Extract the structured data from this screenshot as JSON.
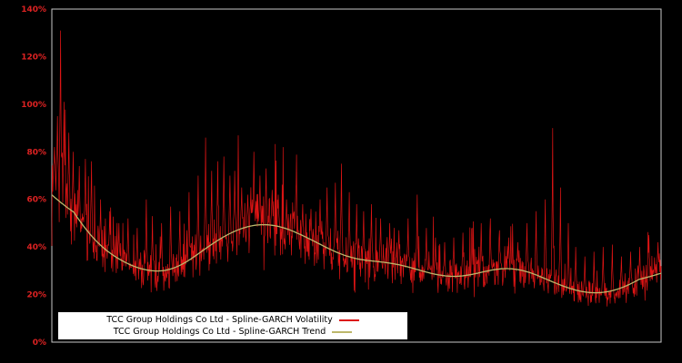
{
  "window": {
    "background": "#000000"
  },
  "chart_data": {
    "type": "line",
    "title": "",
    "xlabel": "",
    "ylabel": "",
    "ylim": [
      0,
      140
    ],
    "grid": false,
    "legend_position": "bottom-left",
    "axis_color": "#c8c8c8",
    "tick_color": "#dd2222",
    "y_ticks": [
      "0%",
      "20%",
      "40%",
      "60%",
      "80%",
      "100%",
      "120%",
      "140%"
    ],
    "series": [
      {
        "name": "TCC Group Holdings Co Ltd - Spline-GARCH Volatility",
        "color": "#dd1414",
        "style": "noisy"
      },
      {
        "name": "TCC Group Holdings Co Ltd - Spline-GARCH Trend",
        "color": "#bdb76b",
        "style": "smooth"
      }
    ],
    "trend_points": [
      [
        0,
        70
      ],
      [
        0.02,
        61
      ],
      [
        0.04,
        52
      ],
      [
        0.06,
        45
      ],
      [
        0.08,
        40
      ],
      [
        0.1,
        36
      ],
      [
        0.12,
        33
      ],
      [
        0.14,
        31
      ],
      [
        0.16,
        29.5
      ],
      [
        0.18,
        29
      ],
      [
        0.2,
        30
      ],
      [
        0.22,
        33
      ],
      [
        0.24,
        37
      ],
      [
        0.26,
        41
      ],
      [
        0.28,
        44.5
      ],
      [
        0.3,
        47
      ],
      [
        0.32,
        49
      ],
      [
        0.34,
        50
      ],
      [
        0.36,
        50
      ],
      [
        0.38,
        48.5
      ],
      [
        0.4,
        46.5
      ],
      [
        0.42,
        44
      ],
      [
        0.44,
        41
      ],
      [
        0.46,
        38.5
      ],
      [
        0.48,
        36
      ],
      [
        0.5,
        34.5
      ],
      [
        0.52,
        34
      ],
      [
        0.54,
        34
      ],
      [
        0.56,
        33.5
      ],
      [
        0.58,
        32
      ],
      [
        0.6,
        30.5
      ],
      [
        0.62,
        29
      ],
      [
        0.64,
        27.5
      ],
      [
        0.66,
        27
      ],
      [
        0.68,
        27.5
      ],
      [
        0.7,
        29
      ],
      [
        0.72,
        30.5
      ],
      [
        0.74,
        31.5
      ],
      [
        0.76,
        31.5
      ],
      [
        0.78,
        30
      ],
      [
        0.8,
        28
      ],
      [
        0.82,
        25.5
      ],
      [
        0.84,
        23
      ],
      [
        0.86,
        21.5
      ],
      [
        0.88,
        20.5
      ],
      [
        0.9,
        20
      ],
      [
        0.92,
        21
      ],
      [
        0.94,
        23
      ],
      [
        0.96,
        25.5
      ],
      [
        0.98,
        28.5
      ],
      [
        1,
        32
      ]
    ],
    "spikes": [
      [
        0.004,
        82
      ],
      [
        0.009,
        95
      ],
      [
        0.014,
        131
      ],
      [
        0.02,
        101
      ],
      [
        0.028,
        88
      ],
      [
        0.035,
        80
      ],
      [
        0.045,
        74
      ],
      [
        0.055,
        77
      ],
      [
        0.065,
        76
      ],
      [
        0.08,
        60
      ],
      [
        0.095,
        55
      ],
      [
        0.11,
        50
      ],
      [
        0.125,
        52
      ],
      [
        0.14,
        48
      ],
      [
        0.155,
        60
      ],
      [
        0.165,
        53
      ],
      [
        0.18,
        50
      ],
      [
        0.195,
        57
      ],
      [
        0.21,
        55
      ],
      [
        0.225,
        63
      ],
      [
        0.24,
        70
      ],
      [
        0.252,
        86
      ],
      [
        0.262,
        72
      ],
      [
        0.272,
        76
      ],
      [
        0.282,
        78
      ],
      [
        0.292,
        70
      ],
      [
        0.3,
        72
      ],
      [
        0.312,
        65
      ],
      [
        0.322,
        62
      ],
      [
        0.332,
        80
      ],
      [
        0.342,
        70
      ],
      [
        0.352,
        73
      ],
      [
        0.362,
        64
      ],
      [
        0.372,
        62
      ],
      [
        0.385,
        60
      ],
      [
        0.4,
        62
      ],
      [
        0.412,
        58
      ],
      [
        0.425,
        56
      ],
      [
        0.44,
        60
      ],
      [
        0.452,
        65
      ],
      [
        0.465,
        67
      ],
      [
        0.475,
        75
      ],
      [
        0.488,
        63
      ],
      [
        0.5,
        58
      ],
      [
        0.512,
        55
      ],
      [
        0.525,
        58
      ],
      [
        0.54,
        52
      ],
      [
        0.555,
        50
      ],
      [
        0.57,
        47
      ],
      [
        0.585,
        52
      ],
      [
        0.6,
        62
      ],
      [
        0.615,
        48
      ],
      [
        0.63,
        44
      ],
      [
        0.645,
        42
      ],
      [
        0.66,
        44
      ],
      [
        0.675,
        46
      ],
      [
        0.69,
        48
      ],
      [
        0.705,
        50
      ],
      [
        0.72,
        52
      ],
      [
        0.735,
        47
      ],
      [
        0.75,
        44
      ],
      [
        0.765,
        42
      ],
      [
        0.78,
        50
      ],
      [
        0.795,
        55
      ],
      [
        0.81,
        60
      ],
      [
        0.822,
        90
      ],
      [
        0.835,
        65
      ],
      [
        0.848,
        50
      ],
      [
        0.86,
        40
      ],
      [
        0.875,
        36
      ],
      [
        0.89,
        38
      ],
      [
        0.905,
        40
      ],
      [
        0.92,
        41
      ],
      [
        0.935,
        36
      ],
      [
        0.95,
        38
      ],
      [
        0.965,
        40
      ],
      [
        0.98,
        45
      ],
      [
        0.995,
        42
      ]
    ],
    "noise": {
      "seed": 7,
      "amplitude": 0.3,
      "points": 1400
    }
  }
}
